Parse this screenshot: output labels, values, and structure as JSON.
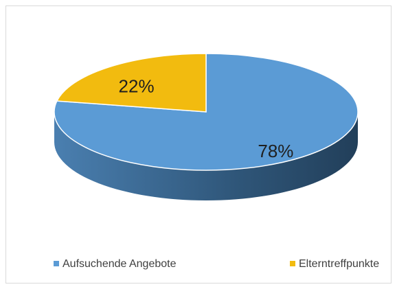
{
  "chart_data": {
    "type": "pie",
    "categories": [
      "Aufsuchende Angebote",
      "Elterntreffpunkte"
    ],
    "values": [
      78,
      22
    ],
    "value_labels": [
      "78%",
      "22%"
    ],
    "colors": [
      "#5b9bd5",
      "#f2bb0f"
    ],
    "legend": "bottom"
  }
}
